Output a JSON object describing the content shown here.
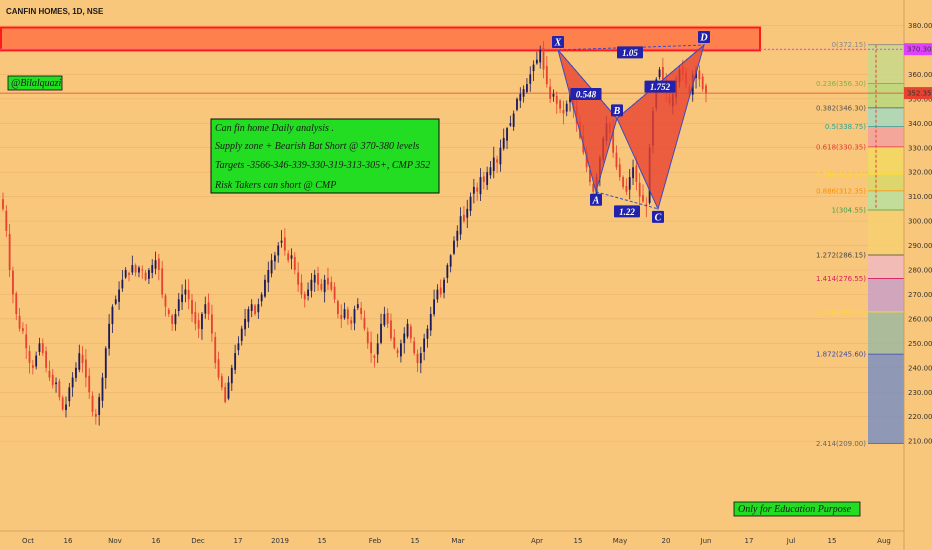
{
  "symbol_title": "CANFIN HOMES, 1D, NSE",
  "author_tag": "@Bilalquazi",
  "analysis_box": {
    "lines": [
      "Can fin home Daily analysis .",
      "Supply zone + Bearish Bat Short @ 370-380 levels",
      "Targets -3566-346-339-330-319-313-305+, CMP 352",
      "Risk Takers can short @ CMP"
    ]
  },
  "edu_note": "Only for Education Purpose",
  "colors": {
    "background": "#f9c77c",
    "up_candle": "#1a1a5e",
    "down_candle": "#e8412f",
    "supply_zone": "#ff6a3d",
    "pattern_fill": "#e8412f",
    "pattern_line": "#3b4cc0",
    "label_box": "#2222aa",
    "green_box": "#22dd22"
  },
  "chart_data": {
    "type": "candlestick",
    "ylim": [
      205,
      385
    ],
    "y_ticks": [
      "380.00",
      "370.00",
      "360.00",
      "350.00",
      "340.00",
      "330.00",
      "320.00",
      "310.00",
      "300.00",
      "290.00",
      "280.00",
      "270.00",
      "260.00",
      "250.00",
      "240.00",
      "230.00",
      "220.00",
      "210.00"
    ],
    "x_ticks": [
      "Oct",
      "16",
      "Nov",
      "16",
      "Dec",
      "17",
      "2019",
      "15",
      "Feb",
      "15",
      "Mar",
      "Apr",
      "15",
      "May",
      "20",
      "Jun",
      "17",
      "Jul",
      "15",
      "Aug"
    ],
    "price_labels": [
      {
        "text": "370.30",
        "value": 370.3,
        "color": "#e040fb"
      },
      {
        "text": "352.35",
        "value": 352.35,
        "color": "#e8412f"
      }
    ],
    "supply_zone": [
      369,
      380
    ],
    "closes": [
      305,
      296,
      280,
      270,
      262,
      256,
      255,
      248,
      242,
      240,
      245,
      250,
      246,
      240,
      236,
      233,
      234,
      228,
      223,
      225,
      232,
      236,
      240,
      246,
      242,
      236,
      230,
      222,
      220,
      228,
      236,
      248,
      258,
      265,
      268,
      272,
      276,
      280,
      278,
      282,
      279,
      281,
      280,
      276,
      280,
      282,
      284,
      280,
      270,
      265,
      262,
      258,
      262,
      268,
      270,
      272,
      268,
      262,
      258,
      256,
      262,
      266,
      262,
      254,
      242,
      236,
      232,
      226,
      234,
      240,
      246,
      250,
      256,
      260,
      264,
      266,
      262,
      266,
      270,
      276,
      280,
      284,
      286,
      290,
      292,
      288,
      284,
      286,
      280,
      274,
      270,
      268,
      272,
      276,
      278,
      274,
      272,
      276,
      274,
      272,
      268,
      262,
      260,
      264,
      260,
      258,
      264,
      266,
      262,
      256,
      250,
      246,
      244,
      250,
      258,
      262,
      258,
      252,
      248,
      246,
      250,
      254,
      258,
      252,
      246,
      242,
      246,
      252,
      256,
      262,
      268,
      272,
      270,
      276,
      282,
      286,
      292,
      296,
      302,
      300,
      305,
      310,
      314,
      312,
      318,
      316,
      320,
      322,
      326,
      324,
      330,
      334,
      338,
      340,
      344,
      350,
      352,
      354,
      356,
      360,
      364,
      366,
      370,
      362,
      356,
      350,
      352,
      348,
      346,
      344,
      348,
      352,
      346,
      340,
      334,
      328,
      322,
      316,
      312,
      318,
      326,
      334,
      340,
      336,
      328,
      322,
      318,
      314,
      312,
      318,
      322,
      316,
      310,
      308,
      306,
      330,
      345,
      358,
      362,
      358,
      352,
      348,
      352,
      358,
      362,
      360,
      356,
      352,
      360,
      362,
      358,
      354,
      352.35
    ],
    "fib_levels": [
      {
        "ratio": "0(372.15)",
        "value": 372.15,
        "color": "#888888"
      },
      {
        "ratio": "0.236(356.30)",
        "value": 356.3,
        "color": "#7cb342"
      },
      {
        "ratio": "0.382(346.30)",
        "value": 346.3,
        "color": "#555555"
      },
      {
        "ratio": "0.5(338.75)",
        "value": 338.75,
        "color": "#26a69a"
      },
      {
        "ratio": "0.618(330.35)",
        "value": 330.35,
        "color": "#e53935"
      },
      {
        "ratio": "0.786(319.10)",
        "value": 319.1,
        "color": "#fdd835"
      },
      {
        "ratio": "0.886(312.35)",
        "value": 312.35,
        "color": "#fb8c00"
      },
      {
        "ratio": "1(304.55)",
        "value": 304.55,
        "color": "#43a047"
      },
      {
        "ratio": "1.272(286.15)",
        "value": 286.15,
        "color": "#444444"
      },
      {
        "ratio": "1.414(276.55)",
        "value": 276.55,
        "color": "#d81b60"
      },
      {
        "ratio": "1.618(262.85)",
        "value": 262.85,
        "color": "#fdd835"
      },
      {
        "ratio": "1.872(245.60)",
        "value": 245.6,
        "color": "#3949ab"
      },
      {
        "ratio": "2.414(209.00)",
        "value": 209.0,
        "color": "#666666"
      }
    ],
    "harmonic": {
      "points": [
        {
          "label": "X",
          "value": 370
        },
        {
          "label": "A",
          "value": 312
        },
        {
          "label": "B",
          "value": 342
        },
        {
          "label": "C",
          "value": 305
        },
        {
          "label": "D",
          "value": 372
        }
      ],
      "ratios": [
        "0.548",
        "1.22",
        "1.752",
        "1.05"
      ]
    }
  }
}
